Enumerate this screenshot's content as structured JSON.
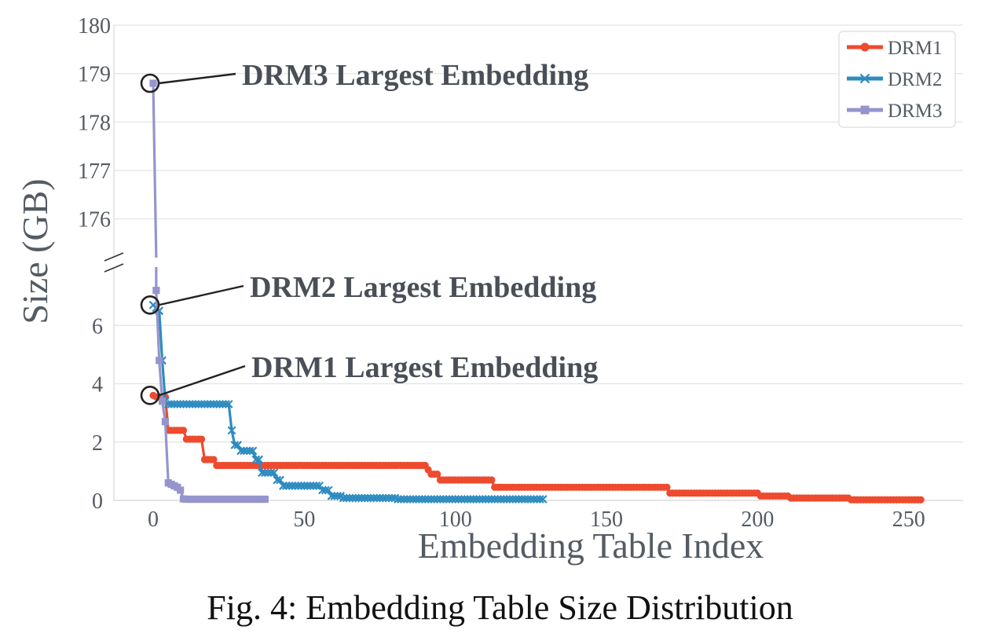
{
  "caption": "Fig. 4: Embedding Table Size Distribution",
  "chart_data": {
    "type": "line",
    "title": "",
    "xlabel": "Embedding Table Index",
    "ylabel": "Size (GB)",
    "broken_y_axis": true,
    "xlim": [
      -13,
      268
    ],
    "ylim_lower": [
      0,
      8
    ],
    "ylim_upper": [
      175.2,
      180
    ],
    "x_ticks": [
      0,
      50,
      100,
      150,
      200,
      250
    ],
    "y_ticks_lower": [
      0,
      2,
      4,
      6
    ],
    "y_ticks_upper": [
      176,
      177,
      178,
      179,
      180
    ],
    "grid": "horizontal",
    "legend_position": "top-right",
    "series": [
      {
        "name": "DRM1",
        "color": "#ee4a2e",
        "marker": "circle",
        "count": 255,
        "steps": [
          {
            "from": 0,
            "to": 0,
            "value": 3.6
          },
          {
            "from": 1,
            "to": 4,
            "value": 3.55
          },
          {
            "from": 5,
            "to": 10,
            "value": 2.4
          },
          {
            "from": 11,
            "to": 16,
            "value": 2.1
          },
          {
            "from": 17,
            "to": 20,
            "value": 1.4
          },
          {
            "from": 21,
            "to": 28,
            "value": 1.2
          },
          {
            "from": 29,
            "to": 90,
            "value": 1.2
          },
          {
            "from": 91,
            "to": 91,
            "value": 1.05
          },
          {
            "from": 92,
            "to": 94,
            "value": 0.9
          },
          {
            "from": 95,
            "to": 112,
            "value": 0.7
          },
          {
            "from": 113,
            "to": 170,
            "value": 0.45
          },
          {
            "from": 171,
            "to": 200,
            "value": 0.25
          },
          {
            "from": 201,
            "to": 210,
            "value": 0.15
          },
          {
            "from": 211,
            "to": 230,
            "value": 0.08
          },
          {
            "from": 231,
            "to": 254,
            "value": 0.02
          }
        ]
      },
      {
        "name": "DRM2",
        "color": "#2e8bc0",
        "marker": "x",
        "count": 130,
        "steps": [
          {
            "from": 0,
            "to": 0,
            "value": 6.7
          },
          {
            "from": 1,
            "to": 1,
            "value": 6.6
          },
          {
            "from": 2,
            "to": 2,
            "value": 6.5
          },
          {
            "from": 3,
            "to": 3,
            "value": 4.8
          },
          {
            "from": 4,
            "to": 4,
            "value": 3.4
          },
          {
            "from": 5,
            "to": 25,
            "value": 3.3
          },
          {
            "from": 26,
            "to": 26,
            "value": 2.4
          },
          {
            "from": 27,
            "to": 28,
            "value": 1.9
          },
          {
            "from": 29,
            "to": 33,
            "value": 1.7
          },
          {
            "from": 34,
            "to": 35,
            "value": 1.4
          },
          {
            "from": 36,
            "to": 40,
            "value": 0.95
          },
          {
            "from": 41,
            "to": 42,
            "value": 0.7
          },
          {
            "from": 43,
            "to": 55,
            "value": 0.5
          },
          {
            "from": 56,
            "to": 58,
            "value": 0.35
          },
          {
            "from": 59,
            "to": 62,
            "value": 0.15
          },
          {
            "from": 63,
            "to": 80,
            "value": 0.08
          },
          {
            "from": 81,
            "to": 129,
            "value": 0.04
          }
        ]
      },
      {
        "name": "DRM3",
        "color": "#9694cc",
        "marker": "square",
        "count": 38,
        "points": [
          {
            "x": 0,
            "y": 178.8
          },
          {
            "x": 1,
            "y": 7.2
          },
          {
            "x": 2,
            "y": 4.8
          },
          {
            "x": 3,
            "y": 3.4
          },
          {
            "x": 4,
            "y": 2.7
          },
          {
            "x": 5,
            "y": 0.6
          },
          {
            "x": 6,
            "y": 0.55
          },
          {
            "x": 7,
            "y": 0.5
          },
          {
            "x": 8,
            "y": 0.45
          },
          {
            "x": 9,
            "y": 0.35
          },
          {
            "x": 10,
            "y": 0.05
          }
        ],
        "tail": {
          "from": 11,
          "to": 37,
          "value": 0.04
        }
      }
    ],
    "annotations": [
      {
        "text": "DRM3 Largest Embedding",
        "x": 0,
        "y": 178.8,
        "series": "DRM3"
      },
      {
        "text": "DRM2 Largest Embedding",
        "x": 0,
        "y": 6.7,
        "series": "DRM2"
      },
      {
        "text": "DRM1 Largest Embedding",
        "x": 0,
        "y": 3.6,
        "series": "DRM1"
      }
    ]
  }
}
